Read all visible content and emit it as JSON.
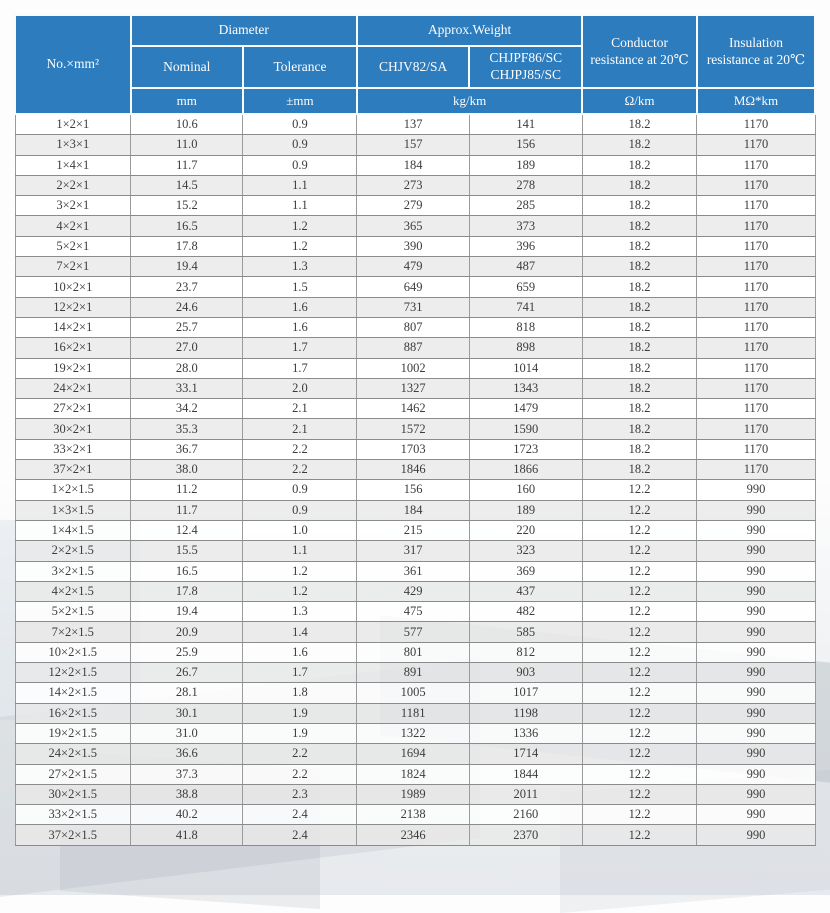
{
  "colors": {
    "header_bg": "#2d7cbe",
    "header_text": "#fdfdfd",
    "row_alt_bg": "#e9e9e9",
    "grid_line": "#8b8b8b",
    "body_text": "#3c3c3c"
  },
  "table": {
    "header": {
      "spec": "No.×mm²",
      "diameter": "Diameter",
      "approx_weight": "Approx.Weight",
      "nominal": "Nominal",
      "tolerance": "Tolerance",
      "model_a": "CHJV82/SA",
      "model_b": "CHJPF86/SC CHJPJ85/SC",
      "conductor_resistance": "Conductor resistance at 20℃",
      "insulation_resistance": "Insulation resistance at 20℃",
      "unit_mm": "mm",
      "unit_tolerance": "±mm",
      "unit_weight": "kg/km",
      "unit_conductor": "Ω/km",
      "unit_insulation": "MΩ*km"
    },
    "rows": [
      [
        "1×2×1",
        "10.6",
        "0.9",
        "137",
        "141",
        "18.2",
        "1170"
      ],
      [
        "1×3×1",
        "11.0",
        "0.9",
        "157",
        "156",
        "18.2",
        "1170"
      ],
      [
        "1×4×1",
        "11.7",
        "0.9",
        "184",
        "189",
        "18.2",
        "1170"
      ],
      [
        "2×2×1",
        "14.5",
        "1.1",
        "273",
        "278",
        "18.2",
        "1170"
      ],
      [
        "3×2×1",
        "15.2",
        "1.1",
        "279",
        "285",
        "18.2",
        "1170"
      ],
      [
        "4×2×1",
        "16.5",
        "1.2",
        "365",
        "373",
        "18.2",
        "1170"
      ],
      [
        "5×2×1",
        "17.8",
        "1.2",
        "390",
        "396",
        "18.2",
        "1170"
      ],
      [
        "7×2×1",
        "19.4",
        "1.3",
        "479",
        "487",
        "18.2",
        "1170"
      ],
      [
        "10×2×1",
        "23.7",
        "1.5",
        "649",
        "659",
        "18.2",
        "1170"
      ],
      [
        "12×2×1",
        "24.6",
        "1.6",
        "731",
        "741",
        "18.2",
        "1170"
      ],
      [
        "14×2×1",
        "25.7",
        "1.6",
        "807",
        "818",
        "18.2",
        "1170"
      ],
      [
        "16×2×1",
        "27.0",
        "1.7",
        "887",
        "898",
        "18.2",
        "1170"
      ],
      [
        "19×2×1",
        "28.0",
        "1.7",
        "1002",
        "1014",
        "18.2",
        "1170"
      ],
      [
        "24×2×1",
        "33.1",
        "2.0",
        "1327",
        "1343",
        "18.2",
        "1170"
      ],
      [
        "27×2×1",
        "34.2",
        "2.1",
        "1462",
        "1479",
        "18.2",
        "1170"
      ],
      [
        "30×2×1",
        "35.3",
        "2.1",
        "1572",
        "1590",
        "18.2",
        "1170"
      ],
      [
        "33×2×1",
        "36.7",
        "2.2",
        "1703",
        "1723",
        "18.2",
        "1170"
      ],
      [
        "37×2×1",
        "38.0",
        "2.2",
        "1846",
        "1866",
        "18.2",
        "1170"
      ],
      [
        "1×2×1.5",
        "11.2",
        "0.9",
        "156",
        "160",
        "12.2",
        "990"
      ],
      [
        "1×3×1.5",
        "11.7",
        "0.9",
        "184",
        "189",
        "12.2",
        "990"
      ],
      [
        "1×4×1.5",
        "12.4",
        "1.0",
        "215",
        "220",
        "12.2",
        "990"
      ],
      [
        "2×2×1.5",
        "15.5",
        "1.1",
        "317",
        "323",
        "12.2",
        "990"
      ],
      [
        "3×2×1.5",
        "16.5",
        "1.2",
        "361",
        "369",
        "12.2",
        "990"
      ],
      [
        "4×2×1.5",
        "17.8",
        "1.2",
        "429",
        "437",
        "12.2",
        "990"
      ],
      [
        "5×2×1.5",
        "19.4",
        "1.3",
        "475",
        "482",
        "12.2",
        "990"
      ],
      [
        "7×2×1.5",
        "20.9",
        "1.4",
        "577",
        "585",
        "12.2",
        "990"
      ],
      [
        "10×2×1.5",
        "25.9",
        "1.6",
        "801",
        "812",
        "12.2",
        "990"
      ],
      [
        "12×2×1.5",
        "26.7",
        "1.7",
        "891",
        "903",
        "12.2",
        "990"
      ],
      [
        "14×2×1.5",
        "28.1",
        "1.8",
        "1005",
        "1017",
        "12.2",
        "990"
      ],
      [
        "16×2×1.5",
        "30.1",
        "1.9",
        "1181",
        "1198",
        "12.2",
        "990"
      ],
      [
        "19×2×1.5",
        "31.0",
        "1.9",
        "1322",
        "1336",
        "12.2",
        "990"
      ],
      [
        "24×2×1.5",
        "36.6",
        "2.2",
        "1694",
        "1714",
        "12.2",
        "990"
      ],
      [
        "27×2×1.5",
        "37.3",
        "2.2",
        "1824",
        "1844",
        "12.2",
        "990"
      ],
      [
        "30×2×1.5",
        "38.8",
        "2.3",
        "1989",
        "2011",
        "12.2",
        "990"
      ],
      [
        "33×2×1.5",
        "40.2",
        "2.4",
        "2138",
        "2160",
        "12.2",
        "990"
      ],
      [
        "37×2×1.5",
        "41.8",
        "2.4",
        "2346",
        "2370",
        "12.2",
        "990"
      ]
    ]
  }
}
